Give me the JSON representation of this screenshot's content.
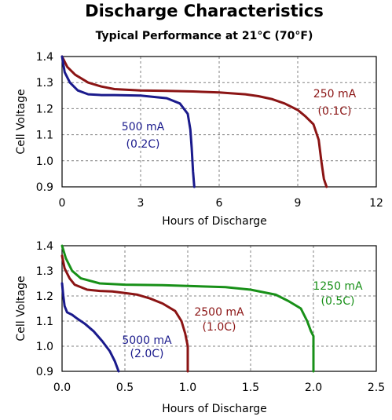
{
  "title": "Discharge Characteristics",
  "subtitle": "Typical Performance at 21°C (70°F)",
  "colors": {
    "blue": "#1a1a8c",
    "red": "#8b1414",
    "green": "#189018",
    "grid": "#808080"
  },
  "chart_data": [
    {
      "type": "line",
      "xlabel": "Hours of Discharge",
      "ylabel": "Cell Voltage",
      "xlim": [
        0,
        12
      ],
      "ylim": [
        0.9,
        1.4
      ],
      "xticks": [
        "0",
        "3",
        "6",
        "9",
        "12"
      ],
      "xtick_values": [
        0,
        3,
        6,
        9,
        12
      ],
      "yticks": [
        "0.9",
        "1.0",
        "1.1",
        "1.2",
        "1.3",
        "1.4"
      ],
      "ytick_values": [
        0.9,
        1.0,
        1.1,
        1.2,
        1.3,
        1.4
      ],
      "grid": true,
      "series": [
        {
          "color": "red",
          "label_lines": [
            "250 mA",
            "(0.1C)"
          ],
          "x": [
            0,
            0.2,
            0.5,
            1,
            1.5,
            2,
            3,
            4,
            5,
            6,
            7,
            7.5,
            8,
            8.5,
            9,
            9.3,
            9.6,
            9.8,
            9.9,
            10.0,
            10.1
          ],
          "y": [
            1.4,
            1.36,
            1.33,
            1.3,
            1.285,
            1.275,
            1.27,
            1.268,
            1.266,
            1.262,
            1.255,
            1.248,
            1.237,
            1.22,
            1.195,
            1.17,
            1.14,
            1.08,
            1.0,
            0.93,
            0.9
          ]
        },
        {
          "color": "blue",
          "label_lines": [
            "500 mA",
            "(0.2C)"
          ],
          "x": [
            0,
            0.1,
            0.3,
            0.6,
            1.0,
            1.5,
            2,
            3,
            4,
            4.5,
            4.8,
            4.9,
            4.95,
            5.0,
            5.05
          ],
          "y": [
            1.4,
            1.34,
            1.3,
            1.27,
            1.255,
            1.252,
            1.252,
            1.25,
            1.24,
            1.22,
            1.18,
            1.12,
            1.05,
            0.96,
            0.9
          ]
        }
      ]
    },
    {
      "type": "line",
      "xlabel": "Hours of Discharge",
      "ylabel": "Cell Voltage",
      "xlim": [
        0,
        2.5
      ],
      "ylim": [
        0.9,
        1.4
      ],
      "xticks": [
        "0.0",
        "0.5",
        "1.0",
        "1.5",
        "2.0",
        "2.5"
      ],
      "xtick_values": [
        0,
        0.5,
        1.0,
        1.5,
        2.0,
        2.5
      ],
      "yticks": [
        "0.9",
        "1.0",
        "1.1",
        "1.2",
        "1.3",
        "1.4"
      ],
      "ytick_values": [
        0.9,
        1.0,
        1.1,
        1.2,
        1.3,
        1.4
      ],
      "grid": true,
      "series": [
        {
          "color": "green",
          "label_lines": [
            "1250 mA",
            "(0.5C)"
          ],
          "x": [
            0,
            0.03,
            0.08,
            0.15,
            0.3,
            0.5,
            0.8,
            1.0,
            1.3,
            1.5,
            1.7,
            1.8,
            1.9,
            1.95,
            1.98,
            2.0,
            2.0
          ],
          "y": [
            1.4,
            1.35,
            1.3,
            1.27,
            1.25,
            1.245,
            1.243,
            1.24,
            1.235,
            1.225,
            1.205,
            1.18,
            1.15,
            1.1,
            1.06,
            1.04,
            0.9
          ]
        },
        {
          "color": "red",
          "label_lines": [
            "2500 mA",
            "(1.0C)"
          ],
          "x": [
            0,
            0.02,
            0.06,
            0.1,
            0.2,
            0.3,
            0.4,
            0.5,
            0.6,
            0.7,
            0.8,
            0.9,
            0.95,
            0.98,
            1.0,
            1.0
          ],
          "y": [
            1.36,
            1.31,
            1.27,
            1.245,
            1.225,
            1.22,
            1.218,
            1.212,
            1.205,
            1.19,
            1.17,
            1.14,
            1.1,
            1.05,
            1.0,
            0.9
          ]
        },
        {
          "color": "blue",
          "label_lines": [
            "5000 mA",
            "(2.0C)"
          ],
          "x": [
            0,
            0.01,
            0.02,
            0.04,
            0.08,
            0.12,
            0.18,
            0.25,
            0.32,
            0.38,
            0.42,
            0.45
          ],
          "y": [
            1.25,
            1.2,
            1.16,
            1.135,
            1.125,
            1.11,
            1.09,
            1.06,
            1.02,
            0.98,
            0.94,
            0.9
          ]
        }
      ]
    }
  ]
}
